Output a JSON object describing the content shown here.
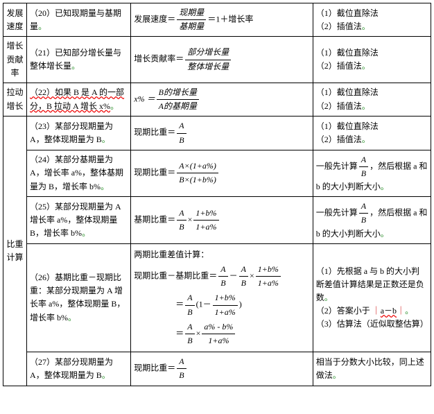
{
  "rows": [
    {
      "category": "发展速度",
      "condition": "（20）已知现期量与基期量",
      "formula_text": "发展速度＝",
      "frac_num": "现期量",
      "frac_den": "基期量",
      "formula_tail": "＝1＋增长率",
      "methods": [
        "（1）截位直除法",
        "（2）插值法"
      ]
    },
    {
      "category": "增长贡献率",
      "condition": "（21）已知部分增长量与整体增长量",
      "formula_text": "增长贡献率＝",
      "frac_num": "部分增长量",
      "frac_den": "整体增长量",
      "methods": [
        "（1）截位直除法",
        "（2）插值法"
      ]
    },
    {
      "category": "拉动增长",
      "condition": "（22）如果 B 是 A 的一部分，B 拉动 A 增长 x%",
      "formula_lhs": "x% ＝",
      "frac_num_i": "B的增长量",
      "frac_den_i": "A的基期量",
      "methods": [
        "（1）截位直除法",
        "（2）插值法"
      ]
    },
    {
      "category": "比重计算",
      "sub": [
        {
          "condition": "（23）某部分现期量为 A，整体现期量为 B",
          "formula_text": "现期比重＝",
          "frac_num": "A",
          "frac_den": "B",
          "methods": [
            "（1）截位直除法",
            "（2）插值法"
          ]
        },
        {
          "condition": "（24）某部分基期量为 A，增长率 a%，整体基期量为 B，增长率 b%",
          "formula_text": "现期比重＝",
          "frac_num": "A×(1+a%)",
          "frac_den": "B×(1+b%)",
          "method_prefix": "一般先计算",
          "method_frac_num": "A",
          "method_frac_den": "B",
          "method_suffix": "，然后根据 a 和 b 的大小判断大小"
        },
        {
          "condition": "（25）某部分现期量为 A 增长率 a%，整体现期量 B，增长率 b%",
          "formula_text": "基期比重＝",
          "frac1_num": "A",
          "frac1_den": "B",
          "times": "×",
          "frac2_num": "1+b%",
          "frac2_den": "1+a%",
          "method_prefix": "一般先计算",
          "method_frac_num": "A",
          "method_frac_den": "B",
          "method_suffix": "，然后根据 a 和 b 的大小判断大小"
        },
        {
          "condition": "（26）基期比重－现期比重：某部分现期量为 A 增长率 a%，整体现期量 B，增长率 b%",
          "header": "两期比重差值计算：",
          "line1_lhs": "现期比重－基期比重＝",
          "f1a_num": "A",
          "f1a_den": "B",
          "minus": "－",
          "f1b_num": "A",
          "f1b_den": "B",
          "times": "×",
          "f1c_num": "1+b%",
          "f1c_den": "1+a%",
          "line2_eq": "＝",
          "f2a_num": "A",
          "f2a_den": "B",
          "line2_mid": "(1－",
          "f2b_num": "1+b%",
          "f2b_den": "1+a%",
          "line2_end": ")",
          "line3_eq": "＝",
          "f3a_num": "A",
          "f3a_den": "B",
          "f3b_num": "a% - b%",
          "f3b_den": "1+a%",
          "methods_complex": {
            "m1": "（1）先根据 a 与 b 的大小判断差值计算结果是正数还是负数",
            "m2a": "（2）答案小于 ",
            "m2b": "a－b",
            "m3": "（3）估算法（近似取整估算）"
          }
        },
        {
          "condition": "（27）某部分现期量为 A，整体现期量为 B",
          "formula_text": "现期比重＝",
          "frac_num": "A",
          "frac_den": "B",
          "method_plain": "相当于分数大小比较，同上述做法"
        }
      ]
    }
  ]
}
